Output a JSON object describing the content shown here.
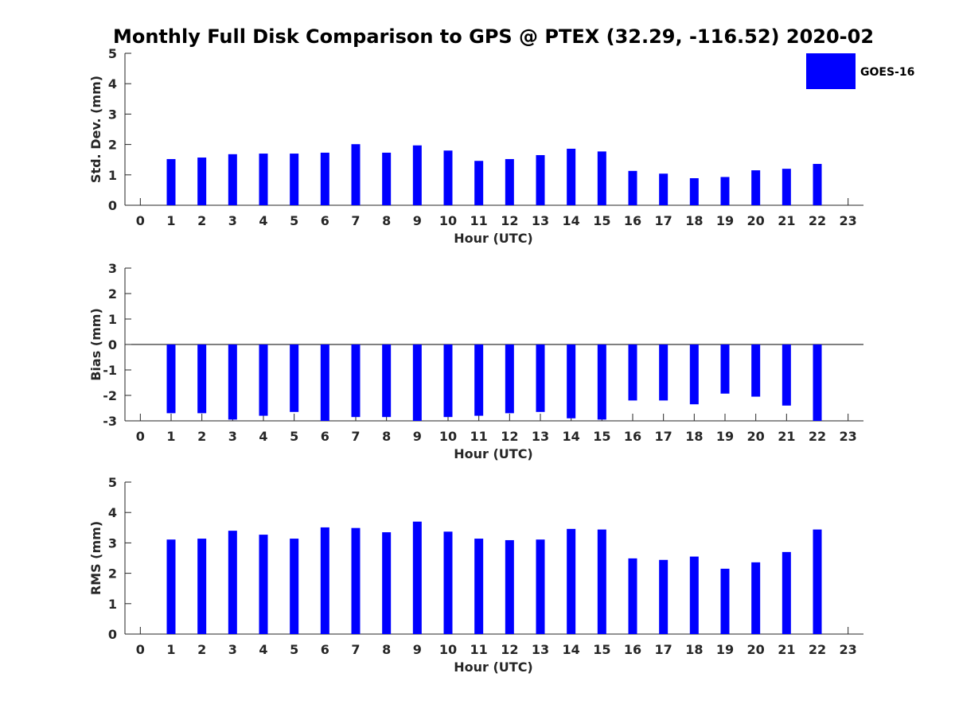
{
  "title": "Monthly Full Disk Comparison to GPS @ PTEX (32.29, -116.52) 2020-02",
  "legend": {
    "label": "GOES-16",
    "color": "#0000ff",
    "placement": "top-right"
  },
  "chart_data": [
    {
      "type": "bar",
      "ylabel": "Std. Dev. (mm)",
      "xlabel": "Hour (UTC)",
      "ylim": [
        0,
        5
      ],
      "yticks": [
        0,
        1,
        2,
        3,
        4,
        5
      ],
      "xlim": [
        -0.5,
        23.5
      ],
      "categories": [
        0,
        1,
        2,
        3,
        4,
        5,
        6,
        7,
        8,
        9,
        10,
        11,
        12,
        13,
        14,
        15,
        16,
        17,
        18,
        19,
        20,
        21,
        22,
        23
      ],
      "series": [
        {
          "name": "GOES-16",
          "color": "#0000ff",
          "values": [
            null,
            1.52,
            1.57,
            1.68,
            1.7,
            1.7,
            1.73,
            2.01,
            1.73,
            1.97,
            1.8,
            1.46,
            1.52,
            1.65,
            1.86,
            1.77,
            1.13,
            1.04,
            0.89,
            0.93,
            1.15,
            1.2,
            1.36,
            null
          ]
        }
      ]
    },
    {
      "type": "bar",
      "ylabel": "Bias (mm)",
      "xlabel": "Hour (UTC)",
      "ylim": [
        -3,
        3
      ],
      "yticks": [
        -3,
        -2,
        -1,
        0,
        1,
        2,
        3
      ],
      "xlim": [
        -0.5,
        23.5
      ],
      "categories": [
        0,
        1,
        2,
        3,
        4,
        5,
        6,
        7,
        8,
        9,
        10,
        11,
        12,
        13,
        14,
        15,
        16,
        17,
        18,
        19,
        20,
        21,
        22,
        23
      ],
      "series": [
        {
          "name": "GOES-16",
          "color": "#0000ff",
          "values": [
            null,
            -2.7,
            -2.7,
            -2.95,
            -2.8,
            -2.65,
            -3.0,
            -2.85,
            -2.85,
            -3.0,
            -2.85,
            -2.8,
            -2.7,
            -2.65,
            -2.9,
            -2.95,
            -2.2,
            -2.2,
            -2.35,
            -1.93,
            -2.05,
            -2.4,
            -3.0,
            null
          ]
        }
      ]
    },
    {
      "type": "bar",
      "ylabel": "RMS (mm)",
      "xlabel": "Hour (UTC)",
      "ylim": [
        0,
        5
      ],
      "yticks": [
        0,
        1,
        2,
        3,
        4,
        5
      ],
      "xlim": [
        -0.5,
        23.5
      ],
      "categories": [
        0,
        1,
        2,
        3,
        4,
        5,
        6,
        7,
        8,
        9,
        10,
        11,
        12,
        13,
        14,
        15,
        16,
        17,
        18,
        19,
        20,
        21,
        22,
        23
      ],
      "series": [
        {
          "name": "GOES-16",
          "color": "#0000ff",
          "values": [
            null,
            3.11,
            3.14,
            3.4,
            3.27,
            3.14,
            3.51,
            3.49,
            3.35,
            3.7,
            3.37,
            3.14,
            3.09,
            3.11,
            3.46,
            3.44,
            2.49,
            2.44,
            2.55,
            2.15,
            2.36,
            2.7,
            3.44,
            null
          ]
        }
      ]
    }
  ]
}
